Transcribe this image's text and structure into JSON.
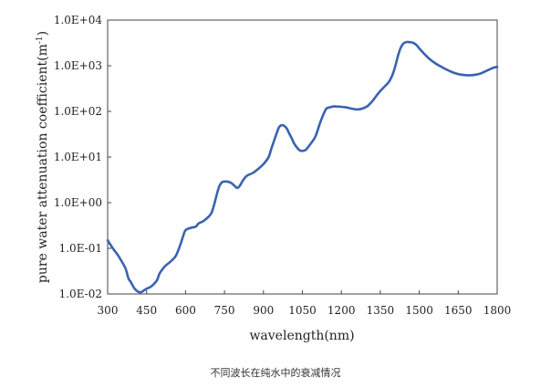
{
  "chart_data": {
    "type": "line",
    "title": "",
    "xlabel": "wavelength(nm)",
    "ylabel": "pure water attenuation coefficient(m",
    "ylabel_superscript": "-1",
    "ylabel_close": ")",
    "x_scale": "linear",
    "y_scale": "log",
    "xlim": [
      300,
      1800
    ],
    "ylim": [
      0.01,
      10000
    ],
    "x_ticks": [
      300,
      450,
      600,
      750,
      900,
      1050,
      1200,
      1350,
      1500,
      1650,
      1800
    ],
    "x_tick_labels": [
      "300",
      "450",
      "600",
      "750",
      "900",
      "1050",
      "1200",
      "1350",
      "1500",
      "1650",
      "1800"
    ],
    "y_ticks": [
      0.01,
      0.1,
      1,
      10,
      100,
      1000,
      10000
    ],
    "y_tick_labels": [
      "1.0E-02",
      "1.0E-01",
      "1.0E+00",
      "1.0E+01",
      "1.0E+02",
      "1.0E+03",
      "1.0E+04"
    ],
    "grid": false,
    "legend": "none",
    "line_color": "#3a63b0",
    "series": [
      {
        "x": [
          300,
          320,
          340,
          360,
          370,
          380,
          390,
          400,
          410,
          420,
          430,
          440,
          450,
          470,
          490,
          500,
          520,
          540,
          560,
          570,
          580,
          590,
          600,
          620,
          640,
          650,
          670,
          690,
          700,
          710,
          720,
          730,
          740,
          750,
          760,
          770,
          780,
          790,
          800,
          810,
          820,
          830,
          840,
          860,
          880,
          900,
          920,
          930,
          940,
          950,
          960,
          970,
          980,
          990,
          1000,
          1010,
          1020,
          1040,
          1060,
          1070,
          1080,
          1100,
          1120,
          1140,
          1150,
          1160,
          1170,
          1180,
          1190,
          1200,
          1220,
          1240,
          1260,
          1280,
          1300,
          1320,
          1340,
          1360,
          1380,
          1390,
          1400,
          1410,
          1420,
          1430,
          1440,
          1450,
          1460,
          1470,
          1480,
          1490,
          1500,
          1520,
          1540,
          1560,
          1580,
          1600,
          1620,
          1640,
          1660,
          1680,
          1700,
          1720,
          1740,
          1760,
          1780,
          1790,
          1800
        ],
        "y": [
          0.15,
          0.1,
          0.07,
          0.045,
          0.035,
          0.022,
          0.018,
          0.014,
          0.012,
          0.011,
          0.011,
          0.012,
          0.013,
          0.015,
          0.02,
          0.028,
          0.04,
          0.05,
          0.065,
          0.085,
          0.12,
          0.18,
          0.25,
          0.28,
          0.3,
          0.35,
          0.4,
          0.5,
          0.6,
          0.9,
          1.5,
          2.3,
          2.8,
          2.9,
          2.9,
          2.8,
          2.6,
          2.3,
          2.1,
          2.4,
          3.0,
          3.6,
          4.0,
          4.5,
          5.5,
          7.0,
          10.0,
          15,
          22,
          32,
          45,
          50,
          48,
          42,
          32,
          25,
          19,
          14,
          14,
          16,
          19,
          28,
          60,
          110,
          120,
          125,
          128,
          128,
          127,
          126,
          122,
          115,
          110,
          115,
          130,
          170,
          240,
          320,
          420,
          520,
          700,
          1100,
          1800,
          2600,
          3100,
          3300,
          3300,
          3250,
          3100,
          2800,
          2400,
          1800,
          1400,
          1150,
          980,
          850,
          750,
          680,
          640,
          620,
          620,
          640,
          690,
          780,
          880,
          920,
          940
        ]
      }
    ]
  },
  "caption": "不同波长在纯水中的衰减情况"
}
